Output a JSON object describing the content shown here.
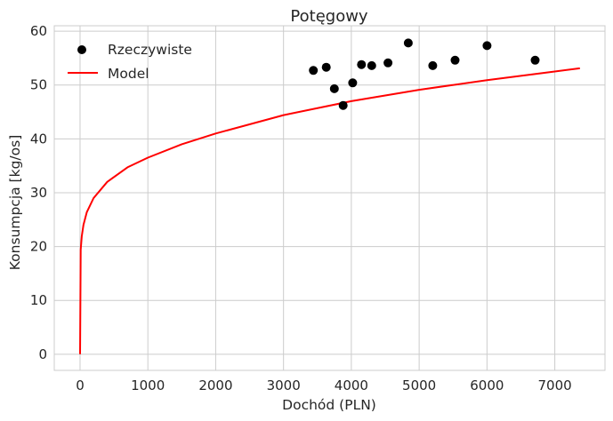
{
  "chart_data": {
    "type": "scatter",
    "title": "Potęgowy",
    "xlabel": "Dochód (PLN)",
    "ylabel": "Konsumpcja [kg/os]",
    "xlim": [
      -380,
      7740
    ],
    "ylim": [
      -3,
      61
    ],
    "xticks": [
      0,
      1000,
      2000,
      3000,
      4000,
      5000,
      6000,
      7000
    ],
    "yticks": [
      0,
      10,
      20,
      30,
      40,
      50,
      60
    ],
    "grid": true,
    "legend_position": "top-left",
    "colors": {
      "points": "#000000",
      "model": "#ff0000",
      "grid": "#cccccc",
      "axes": "#cccccc"
    },
    "series": [
      {
        "name": "Rzeczywiste",
        "kind": "scatter",
        "x": [
          3440,
          3630,
          3750,
          3880,
          4020,
          4150,
          4300,
          4540,
          4840,
          5200,
          5530,
          6000,
          6710
        ],
        "y": [
          52.7,
          53.3,
          49.3,
          46.2,
          50.4,
          53.8,
          53.6,
          54.1,
          57.8,
          53.6,
          54.6,
          57.3,
          54.6
        ]
      },
      {
        "name": "Model",
        "kind": "line",
        "x": [
          0,
          10,
          25,
          50,
          100,
          200,
          400,
          700,
          1000,
          1500,
          2000,
          3000,
          4000,
          5000,
          6000,
          7000,
          7370
        ],
        "y": [
          0,
          19.4,
          21.9,
          24.0,
          26.4,
          29.0,
          32.0,
          34.7,
          36.5,
          39.0,
          41.0,
          44.4,
          47.0,
          49.1,
          50.9,
          52.5,
          53.1
        ]
      }
    ]
  }
}
